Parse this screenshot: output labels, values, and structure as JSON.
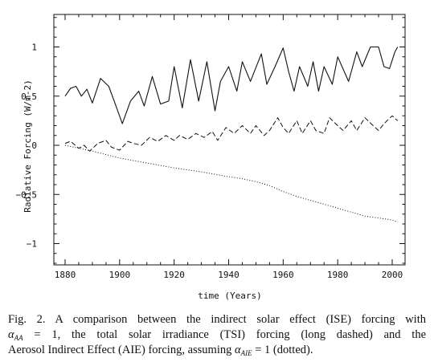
{
  "chart_data": {
    "type": "line",
    "xlabel": "time (Years)",
    "ylabel": "Radiative Forcing (W/m-2)",
    "xlim": [
      1875,
      2003
    ],
    "ylim": [
      -1.2,
      1.3
    ],
    "xticks": [
      1880,
      1900,
      1920,
      1940,
      1960,
      1980,
      2000
    ],
    "yticks": [
      -1,
      -0.5,
      0,
      0.5,
      1
    ],
    "xtick_labels": [
      "1880",
      "1900",
      "1920",
      "1940",
      "1960",
      "1980",
      "2000"
    ],
    "ytick_labels": [
      "−1",
      "−0.5",
      "0",
      "0.5",
      "1"
    ],
    "series": [
      {
        "style": "solid",
        "x": [
          1880,
          1882,
          1884,
          1886,
          1888,
          1890,
          1893,
          1896,
          1898,
          1901,
          1904,
          1907,
          1909,
          1912,
          1915,
          1918,
          1920,
          1923,
          1926,
          1929,
          1932,
          1935,
          1937,
          1940,
          1943,
          1945,
          1948,
          1952,
          1954,
          1957,
          1960,
          1962,
          1964,
          1966,
          1969,
          1971,
          1973,
          1975,
          1978,
          1980,
          1984,
          1987,
          1989,
          1992,
          1995,
          1997,
          1999,
          2001,
          2002
        ],
        "y": [
          0.5,
          0.58,
          0.6,
          0.5,
          0.57,
          0.43,
          0.68,
          0.6,
          0.45,
          0.22,
          0.45,
          0.55,
          0.4,
          0.7,
          0.42,
          0.45,
          0.8,
          0.38,
          0.87,
          0.45,
          0.85,
          0.35,
          0.65,
          0.8,
          0.55,
          0.85,
          0.65,
          0.93,
          0.62,
          0.8,
          0.99,
          0.75,
          0.55,
          0.8,
          0.6,
          0.85,
          0.55,
          0.8,
          0.62,
          0.9,
          0.65,
          0.95,
          0.8,
          1.0,
          1.0,
          0.8,
          0.78,
          0.95,
          1.0
        ]
      },
      {
        "style": "dashed",
        "x": [
          1880,
          1882,
          1885,
          1887,
          1889,
          1892,
          1895,
          1897,
          1900,
          1903,
          1905,
          1908,
          1911,
          1914,
          1917,
          1920,
          1922,
          1925,
          1928,
          1931,
          1934,
          1936,
          1939,
          1942,
          1945,
          1948,
          1950,
          1953,
          1955,
          1958,
          1960,
          1962,
          1965,
          1967,
          1970,
          1972,
          1975,
          1977,
          1980,
          1982,
          1985,
          1987,
          1990,
          1993,
          1995,
          1997,
          2000,
          2002
        ],
        "y": [
          0.02,
          0.04,
          -0.03,
          0.0,
          -0.06,
          0.02,
          0.05,
          -0.02,
          -0.05,
          0.04,
          0.02,
          0.0,
          0.08,
          0.04,
          0.1,
          0.05,
          0.1,
          0.06,
          0.12,
          0.08,
          0.14,
          0.05,
          0.18,
          0.12,
          0.2,
          0.12,
          0.2,
          0.1,
          0.15,
          0.28,
          0.18,
          0.12,
          0.25,
          0.12,
          0.25,
          0.15,
          0.12,
          0.28,
          0.2,
          0.15,
          0.25,
          0.15,
          0.28,
          0.2,
          0.15,
          0.22,
          0.3,
          0.25
        ]
      },
      {
        "style": "dotted",
        "x": [
          1880,
          1890,
          1900,
          1910,
          1920,
          1930,
          1940,
          1945,
          1950,
          1955,
          1960,
          1965,
          1970,
          1975,
          1980,
          1985,
          1990,
          1995,
          2000,
          2002
        ],
        "y": [
          0.0,
          -0.06,
          -0.13,
          -0.18,
          -0.23,
          -0.27,
          -0.32,
          -0.34,
          -0.37,
          -0.41,
          -0.47,
          -0.52,
          -0.56,
          -0.6,
          -0.64,
          -0.68,
          -0.72,
          -0.74,
          -0.76,
          -0.78
        ]
      }
    ]
  },
  "caption": {
    "line1": "Fig. 2. A comparison between the indirect solar effect (ISE) forcing with",
    "line2_alpha": "α",
    "line2_sub": "AA",
    "line2_rest": " = 1, the total solar irradiance (TSI) forcing (long dashed) and the",
    "line3_start": "Aerosol Indirect Effect (AIE) forcing, assuming ",
    "line3_alpha": "α",
    "line3_sub": "AIE",
    "line3_end": " = 1 (dotted)."
  }
}
